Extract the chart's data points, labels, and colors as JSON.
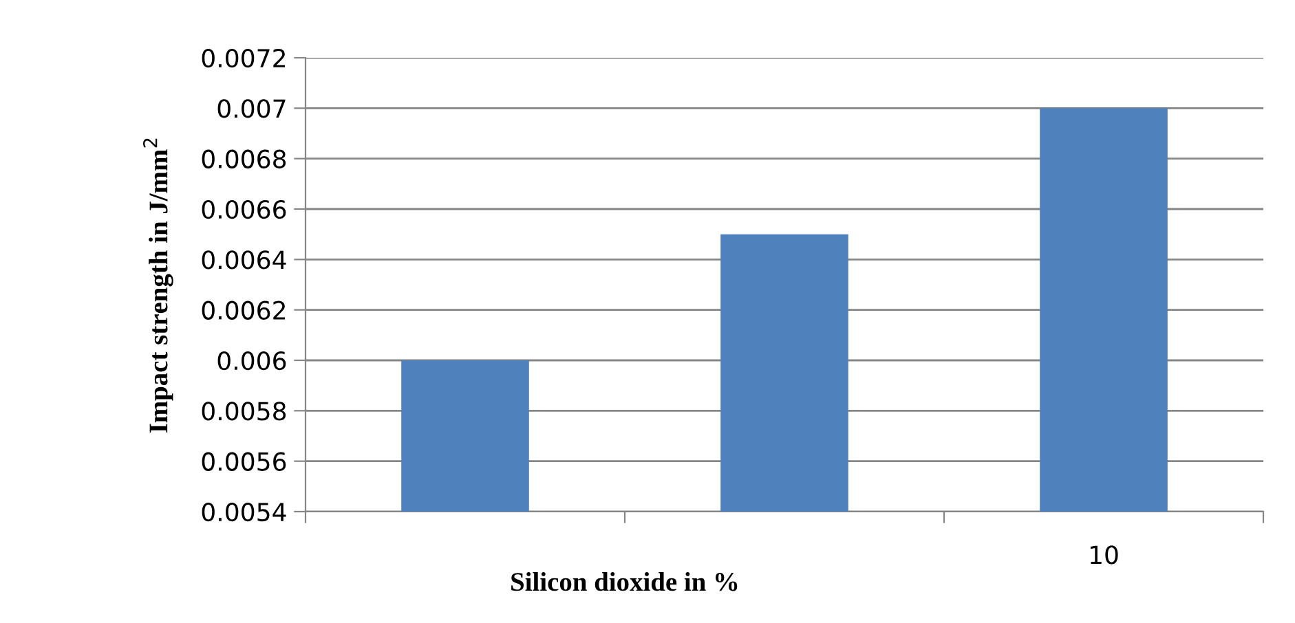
{
  "chart_data": {
    "type": "bar",
    "categories": [
      null,
      null,
      "10"
    ],
    "values": [
      0.006,
      0.0065,
      0.007
    ],
    "color": "#4f81bd",
    "xlabel": "Silicon dioxide in %",
    "ylabel": "Impact strength in J/mm$^{2}$",
    "ylim": [
      0.0054,
      0.0072
    ],
    "yticks": [
      {
        "value": 0.0054,
        "label": "0.0054"
      },
      {
        "value": 0.0056,
        "label": "0.0056"
      },
      {
        "value": 0.0058,
        "label": "0.0058"
      },
      0.006,
      {
        "value": 0.0062,
        "label": "0.0062"
      },
      {
        "value": 0.0064,
        "label": "0.0064"
      },
      {
        "value": 0.0066,
        "label": "0.0066"
      },
      {
        "value": 0.0068,
        "label": "0.0068"
      },
      0.007,
      {
        "value": 0.0072,
        "label": "0.0072"
      }
    ],
    "grid": "y"
  }
}
